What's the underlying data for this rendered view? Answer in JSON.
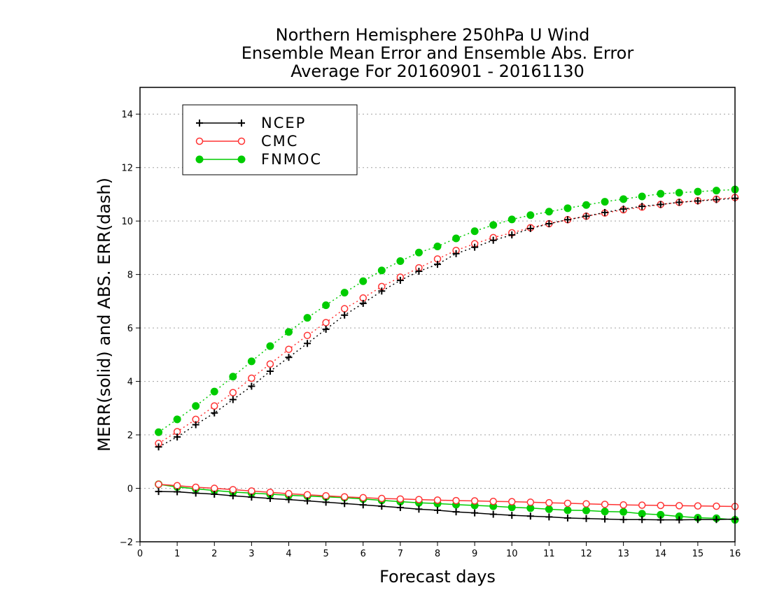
{
  "colors": {
    "NCEP": "#000000",
    "CMC": "#ff3333",
    "FNMOC": "#00cc00",
    "grid": "#a0a0a0"
  },
  "chart_data": {
    "type": "line",
    "title": [
      "Northern Hemisphere 250hPa U Wind",
      "Ensemble Mean Error and Ensemble Abs. Error",
      "Average For 20160901 - 20161130"
    ],
    "xlabel": "Forecast days",
    "ylabel": "MERR(solid) and ABS. ERR(dash)",
    "xlim": [
      0,
      16
    ],
    "ylim": [
      -2,
      15
    ],
    "xticks": [
      0,
      1,
      2,
      3,
      4,
      5,
      6,
      7,
      8,
      9,
      10,
      11,
      12,
      13,
      14,
      15,
      16
    ],
    "yticks": [
      -2,
      0,
      2,
      4,
      6,
      8,
      10,
      12,
      14
    ],
    "grid": true,
    "legend_position": "top-left",
    "x": [
      0.5,
      1,
      1.5,
      2,
      2.5,
      3,
      3.5,
      4,
      4.5,
      5,
      5.5,
      6,
      6.5,
      7,
      7.5,
      8,
      8.5,
      9,
      9.5,
      10,
      10.5,
      11,
      11.5,
      12,
      12.5,
      13,
      13.5,
      14,
      14.5,
      15,
      15.5,
      16
    ],
    "series": [
      {
        "name": "NCEP",
        "marker": "plus",
        "abs_err": [
          1.55,
          1.92,
          2.38,
          2.82,
          3.32,
          3.82,
          4.38,
          4.9,
          5.42,
          5.95,
          6.48,
          6.92,
          7.38,
          7.78,
          8.12,
          8.38,
          8.78,
          9.02,
          9.28,
          9.48,
          9.72,
          9.9,
          10.05,
          10.18,
          10.32,
          10.45,
          10.55,
          10.62,
          10.7,
          10.75,
          10.8,
          10.85
        ],
        "mean_err": [
          -0.12,
          -0.13,
          -0.18,
          -0.22,
          -0.28,
          -0.33,
          -0.38,
          -0.42,
          -0.47,
          -0.52,
          -0.57,
          -0.62,
          -0.67,
          -0.72,
          -0.78,
          -0.82,
          -0.88,
          -0.92,
          -0.97,
          -1.01,
          -1.04,
          -1.07,
          -1.11,
          -1.13,
          -1.15,
          -1.17,
          -1.17,
          -1.18,
          -1.18,
          -1.17,
          -1.17,
          -1.15
        ]
      },
      {
        "name": "CMC",
        "marker": "open-circle",
        "abs_err": [
          1.68,
          2.12,
          2.58,
          3.08,
          3.58,
          4.12,
          4.65,
          5.2,
          5.72,
          6.2,
          6.72,
          7.12,
          7.55,
          7.9,
          8.25,
          8.58,
          8.9,
          9.15,
          9.38,
          9.56,
          9.75,
          9.9,
          10.05,
          10.18,
          10.3,
          10.42,
          10.52,
          10.62,
          10.7,
          10.76,
          10.82,
          10.88
        ],
        "mean_err": [
          0.15,
          0.1,
          0.04,
          0.0,
          -0.05,
          -0.1,
          -0.15,
          -0.2,
          -0.24,
          -0.28,
          -0.32,
          -0.35,
          -0.38,
          -0.4,
          -0.42,
          -0.44,
          -0.46,
          -0.47,
          -0.49,
          -0.5,
          -0.52,
          -0.54,
          -0.56,
          -0.58,
          -0.6,
          -0.62,
          -0.63,
          -0.64,
          -0.65,
          -0.66,
          -0.67,
          -0.68
        ]
      },
      {
        "name": "FNMOC",
        "marker": "filled-circle",
        "abs_err": [
          2.1,
          2.58,
          3.08,
          3.62,
          4.18,
          4.75,
          5.32,
          5.85,
          6.38,
          6.85,
          7.32,
          7.75,
          8.15,
          8.5,
          8.82,
          9.05,
          9.35,
          9.62,
          9.85,
          10.06,
          10.22,
          10.35,
          10.48,
          10.6,
          10.72,
          10.82,
          10.92,
          11.02,
          11.06,
          11.1,
          11.14,
          11.18
        ],
        "mean_err": [
          0.15,
          0.05,
          -0.02,
          -0.08,
          -0.14,
          -0.18,
          -0.22,
          -0.26,
          -0.29,
          -0.32,
          -0.35,
          -0.4,
          -0.45,
          -0.5,
          -0.54,
          -0.57,
          -0.61,
          -0.64,
          -0.67,
          -0.71,
          -0.74,
          -0.78,
          -0.82,
          -0.83,
          -0.87,
          -0.88,
          -0.95,
          -0.99,
          -1.05,
          -1.1,
          -1.12,
          -1.18
        ]
      }
    ]
  }
}
